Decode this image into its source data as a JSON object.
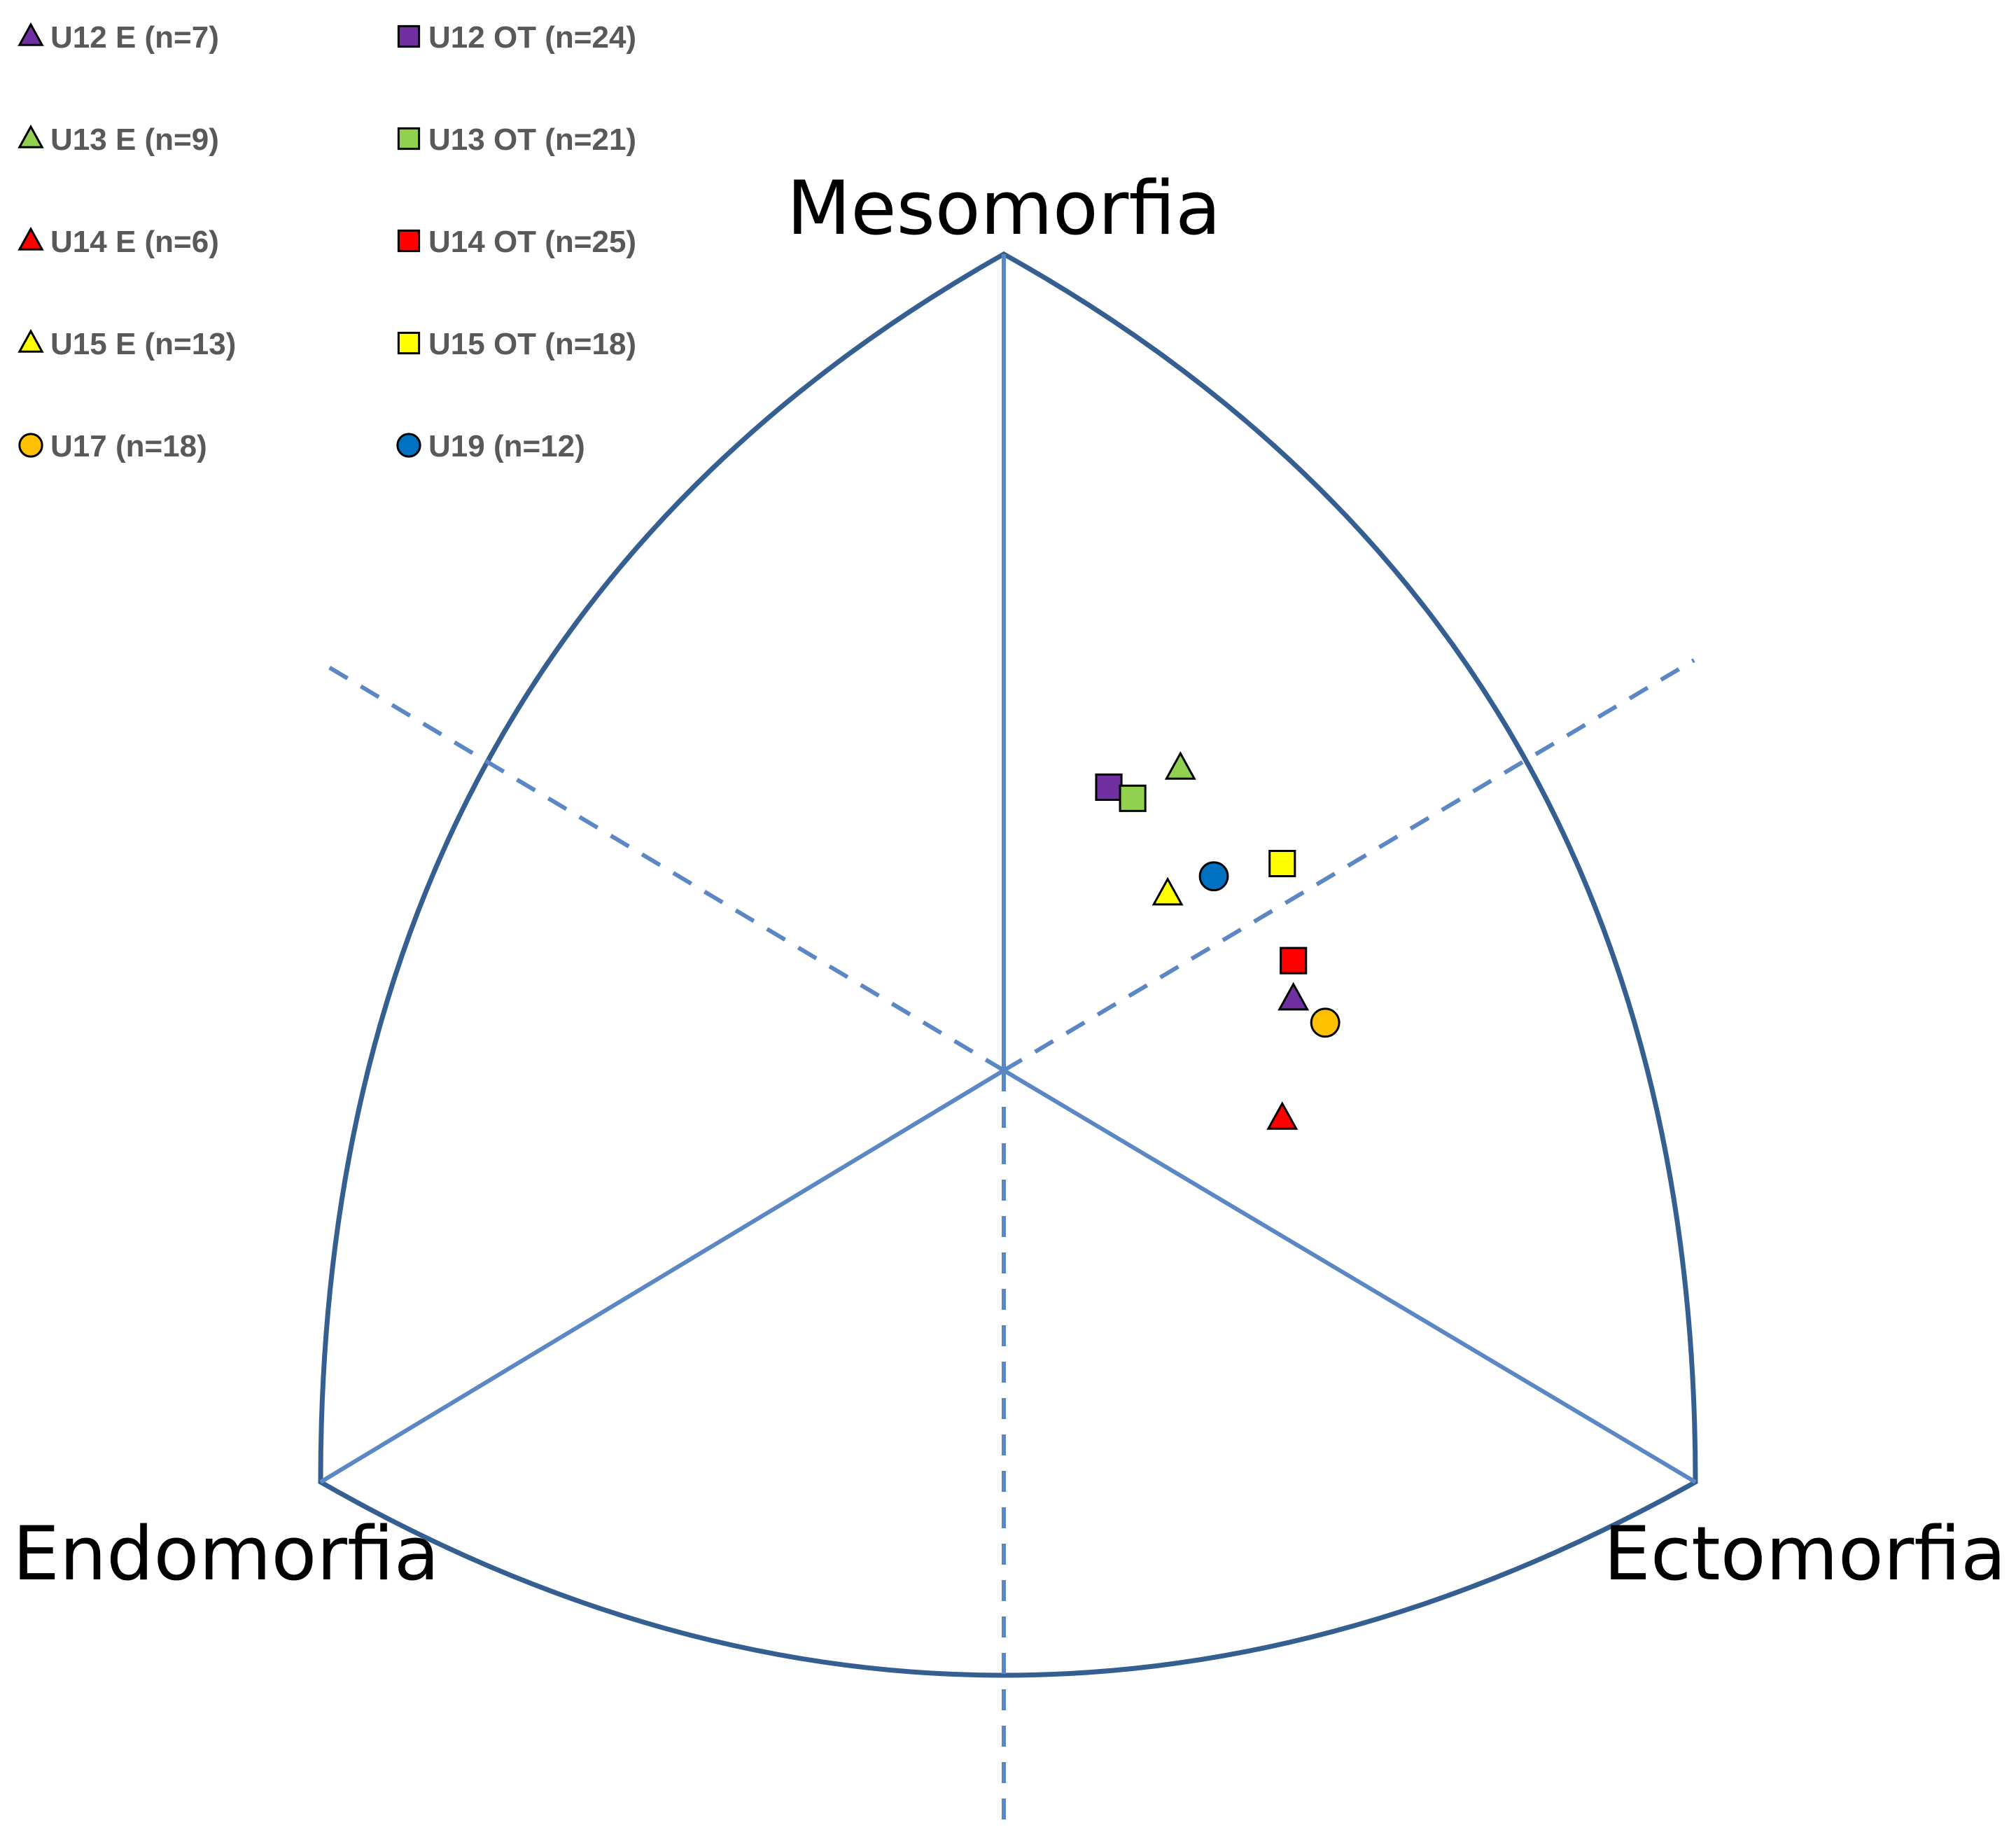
{
  "chart_data": {
    "type": "scatter",
    "subtype": "somatochart",
    "title": "",
    "vertex_labels": {
      "top": "Mesomorfia",
      "left": "Endomorfia",
      "right": "Ectomorfia"
    },
    "x_range": [
      -5.1,
      5.1
    ],
    "y_range": [
      -5.1,
      6.5
    ],
    "legend_position": "top-left",
    "series": [
      {
        "name": "U12 E (n=7)",
        "marker": "triangle",
        "color": "#7030a0",
        "x": 1.82,
        "y": 0.45
      },
      {
        "name": "U12 OT (n=24)",
        "marker": "square",
        "color": "#7030a0",
        "x": 0.66,
        "y": 1.78
      },
      {
        "name": "U13 E (n=9)",
        "marker": "triangle",
        "color": "#92d050",
        "x": 1.11,
        "y": 1.9
      },
      {
        "name": "U13 OT (n=21)",
        "marker": "square",
        "color": "#92d050",
        "x": 0.81,
        "y": 1.71
      },
      {
        "name": "U14 E (n=6)",
        "marker": "triangle",
        "color": "#ff0000",
        "x": 1.75,
        "y": -0.3
      },
      {
        "name": "U14 OT (n=25)",
        "marker": "square",
        "color": "#ff0000",
        "x": 1.82,
        "y": 0.69
      },
      {
        "name": "U15 E (n=13)",
        "marker": "triangle",
        "color": "#ffff00",
        "x": 1.03,
        "y": 1.11
      },
      {
        "name": "U15 OT (n=18)",
        "marker": "square",
        "color": "#ffff00",
        "x": 1.75,
        "y": 1.3
      },
      {
        "name": "U17  (n=18)",
        "marker": "circle",
        "color": "#ffc000",
        "x": 2.02,
        "y": 0.3
      },
      {
        "name": "U19  (n=12)",
        "marker": "circle",
        "color": "#0070c0",
        "x": 1.32,
        "y": 1.22
      }
    ]
  }
}
